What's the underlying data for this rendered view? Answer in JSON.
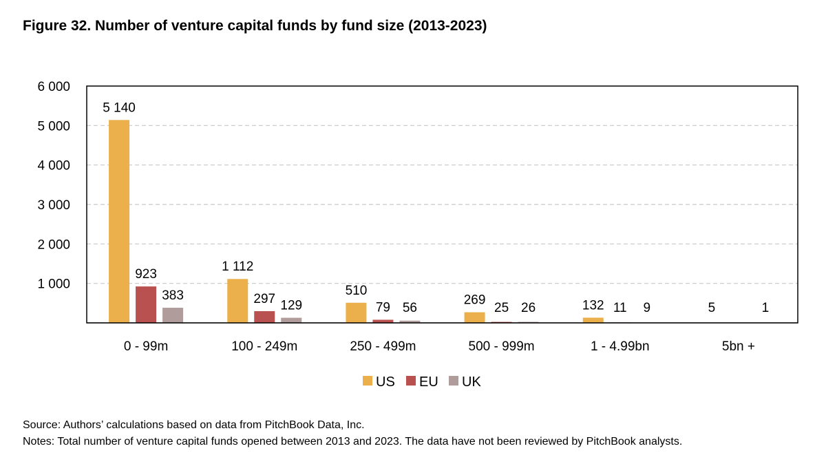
{
  "figure": {
    "title": "Figure 32. Number of venture capital funds by fund size (2013-2023)",
    "source": "Source: Authors’ calculations based on data from PitchBook Data, Inc.",
    "notes": "Notes: Total number of venture capital funds opened between 2013 and 2023. The data have not been reviewed by PitchBook analysts."
  },
  "chart_data": {
    "type": "bar",
    "categories": [
      "0 - 99m",
      "100 - 249m",
      "250 - 499m",
      "500 - 999m",
      "1 - 4.99bn",
      "5bn +"
    ],
    "series": [
      {
        "name": "US",
        "values": [
          5140,
          1112,
          510,
          269,
          132,
          5
        ],
        "labels": [
          "5 140",
          "1 112",
          "510",
          "269",
          "132",
          "5"
        ]
      },
      {
        "name": "EU",
        "values": [
          923,
          297,
          79,
          25,
          11,
          0
        ],
        "labels": [
          "923",
          "297",
          "79",
          "25",
          "11",
          ""
        ]
      },
      {
        "name": "UK",
        "values": [
          383,
          129,
          56,
          26,
          9,
          1
        ],
        "labels": [
          "383",
          "129",
          "56",
          "26",
          "9",
          "1"
        ]
      }
    ],
    "colors": {
      "US": "#EBAF4B",
      "EU": "#B8514F",
      "UK": "#B09D9B"
    },
    "ylim": [
      0,
      6000
    ],
    "yticks": [
      1000,
      2000,
      3000,
      4000,
      5000,
      6000
    ],
    "ytick_labels": [
      "1 000",
      "2 000",
      "3 000",
      "4 000",
      "5 000",
      "6 000"
    ],
    "grid": "dashed horizontal",
    "legend": "bottom-center"
  }
}
